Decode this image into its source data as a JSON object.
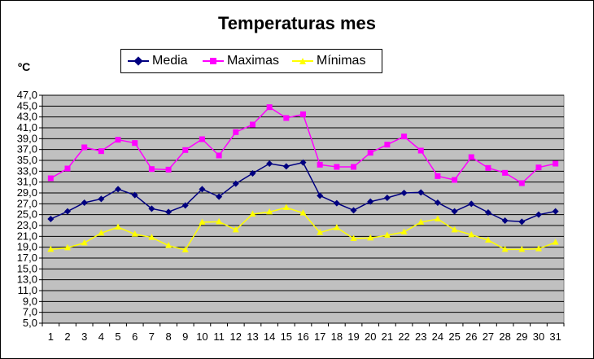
{
  "chart_data": {
    "type": "line",
    "title": "Temperaturas mes",
    "ylabel": "ºC",
    "xlabel": "",
    "ylim": [
      5,
      47
    ],
    "ytick_step": 2,
    "ytick_labels": [
      "5,0",
      "7,0",
      "9,0",
      "11,0",
      "13,0",
      "15,0",
      "17,0",
      "19,0",
      "21,0",
      "23,0",
      "25,0",
      "27,0",
      "29,0",
      "31,0",
      "33,0",
      "35,0",
      "37,0",
      "39,0",
      "41,0",
      "43,0",
      "45,0",
      "47,0"
    ],
    "x": [
      1,
      2,
      3,
      4,
      5,
      6,
      7,
      8,
      9,
      10,
      11,
      12,
      13,
      14,
      15,
      16,
      17,
      18,
      19,
      20,
      21,
      22,
      23,
      24,
      25,
      26,
      27,
      28,
      29,
      30,
      31
    ],
    "grid": true,
    "legend": "top",
    "background_color": "#c0c0c0",
    "series": [
      {
        "name": "Media",
        "color": "#000080",
        "marker": "diamond",
        "values": [
          24.2,
          25.6,
          27.2,
          27.9,
          29.7,
          28.6,
          26.1,
          25.5,
          26.7,
          29.7,
          28.3,
          30.7,
          32.6,
          34.4,
          33.9,
          34.6,
          28.5,
          27.1,
          25.8,
          27.4,
          28.1,
          29.0,
          29.1,
          27.2,
          25.6,
          27.0,
          25.4,
          23.9,
          23.7,
          25.0,
          25.6
        ]
      },
      {
        "name": "Maximas",
        "color": "#ff00ff",
        "marker": "square",
        "values": [
          31.7,
          33.5,
          37.4,
          36.7,
          38.8,
          38.2,
          33.4,
          33.3,
          36.9,
          38.9,
          35.9,
          40.2,
          41.6,
          44.8,
          42.8,
          43.5,
          34.2,
          33.8,
          33.8,
          36.4,
          37.9,
          39.4,
          36.8,
          32.1,
          31.4,
          35.6,
          33.6,
          32.7,
          30.8,
          33.7,
          34.4
        ]
      },
      {
        "name": "Mínimas",
        "color": "#ffff00",
        "marker": "triangle",
        "values": [
          18.6,
          18.9,
          19.8,
          21.6,
          22.7,
          21.4,
          20.8,
          19.3,
          18.5,
          23.6,
          23.7,
          22.2,
          25.1,
          25.5,
          26.3,
          25.3,
          21.7,
          22.6,
          20.6,
          20.7,
          21.2,
          21.8,
          23.6,
          24.2,
          22.2,
          21.3,
          20.3,
          18.6,
          18.6,
          18.7,
          19.9
        ]
      }
    ]
  }
}
